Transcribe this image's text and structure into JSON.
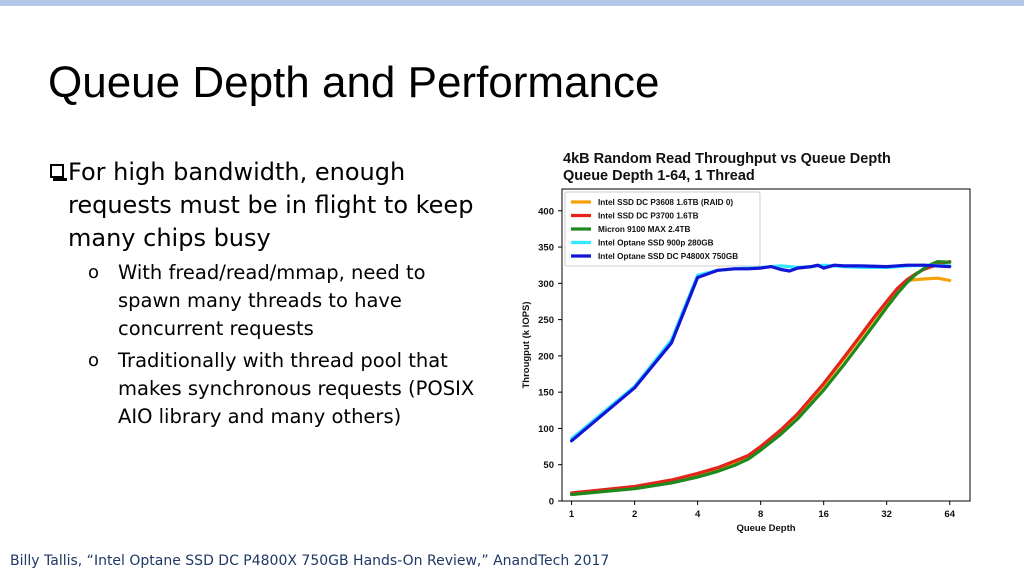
{
  "slide": {
    "title": "Queue Depth and Performance",
    "bullets": {
      "main": "For high bandwidth, enough requests must be in flight to keep many chips busy",
      "sub": [
        {
          "marker": "o",
          "text": "With fread/read/mmap, need to spawn many threads to have concurrent requests"
        },
        {
          "marker": "o",
          "text": "Traditionally with thread pool that makes synchronous requests (POSIX AIO library and many others)"
        }
      ]
    },
    "citation": "Billy Tallis, “Intel Optane SSD DC P4800X 750GB Hands-On Review,” AnandTech 2017",
    "colors": {
      "topbar": "#b4c7e7",
      "citation": "#1f3864"
    }
  },
  "chart_data": {
    "type": "line",
    "title_lines": [
      "4kB Random Read Throughput vs Queue Depth",
      "Queue Depth 1-64, 1 Thread"
    ],
    "xlabel": "Queue Depth",
    "ylabel": "Througput (k IOPS)",
    "xscale": "log2",
    "x_ticks": [
      1,
      2,
      4,
      8,
      16,
      32,
      64
    ],
    "ylim": [
      0,
      400
    ],
    "y_ticks": [
      0,
      50,
      100,
      150,
      200,
      250,
      300,
      350,
      400
    ],
    "legend_position": "top-left",
    "grid": false,
    "series": [
      {
        "name": "Intel SSD DC P3608 1.6TB (RAID 0)",
        "color": "#f5a10a",
        "x": [
          1,
          2,
          3,
          4,
          5,
          6,
          7,
          8,
          10,
          12,
          16,
          20,
          24,
          28,
          32,
          36,
          40,
          48,
          56,
          64
        ],
        "y": [
          10,
          19,
          27,
          35,
          43,
          52,
          61,
          73,
          96,
          118,
          160,
          196,
          226,
          252,
          272,
          292,
          304,
          306,
          307,
          304
        ]
      },
      {
        "name": "Intel SSD DC P3700 1.6TB",
        "color": "#e3241b",
        "x": [
          1,
          2,
          3,
          4,
          5,
          6,
          7,
          8,
          10,
          12,
          16,
          20,
          24,
          28,
          32,
          36,
          40,
          44,
          48,
          56,
          64
        ],
        "y": [
          11,
          20,
          29,
          38,
          46,
          55,
          63,
          75,
          98,
          120,
          162,
          198,
          228,
          254,
          275,
          293,
          305,
          313,
          319,
          326,
          330
        ]
      },
      {
        "name": "Micron 9100 MAX 2.4TB",
        "color": "#1e8a1e",
        "x": [
          1,
          2,
          3,
          4,
          5,
          6,
          7,
          8,
          10,
          12,
          16,
          20,
          24,
          28,
          32,
          36,
          40,
          44,
          48,
          52,
          56,
          64
        ],
        "y": [
          9,
          17,
          25,
          33,
          41,
          49,
          58,
          70,
          92,
          113,
          153,
          188,
          218,
          244,
          267,
          286,
          301,
          312,
          320,
          326,
          330,
          329
        ]
      },
      {
        "name": "Intel Optane SSD 900p 280GB",
        "color": "#33e8ff",
        "x": [
          1,
          2,
          3,
          4,
          5,
          6,
          8,
          10,
          12,
          14,
          16,
          20,
          24,
          32,
          40,
          48,
          64
        ],
        "y": [
          86,
          158,
          222,
          311,
          318,
          320,
          322,
          324,
          322,
          323,
          325,
          323,
          322,
          322,
          324,
          325,
          324
        ]
      },
      {
        "name": "Intel Optane SSD DC P4800X 750GB",
        "color": "#1214d8",
        "x": [
          1,
          2,
          3,
          4,
          5,
          6,
          7,
          8,
          9,
          10,
          11,
          12,
          14,
          15,
          16,
          18,
          20,
          24,
          32,
          40,
          48,
          64
        ],
        "y": [
          83,
          156,
          218,
          308,
          318,
          320,
          320,
          321,
          323,
          319,
          317,
          321,
          323,
          325,
          321,
          325,
          324,
          324,
          323,
          325,
          325,
          323
        ]
      }
    ]
  }
}
